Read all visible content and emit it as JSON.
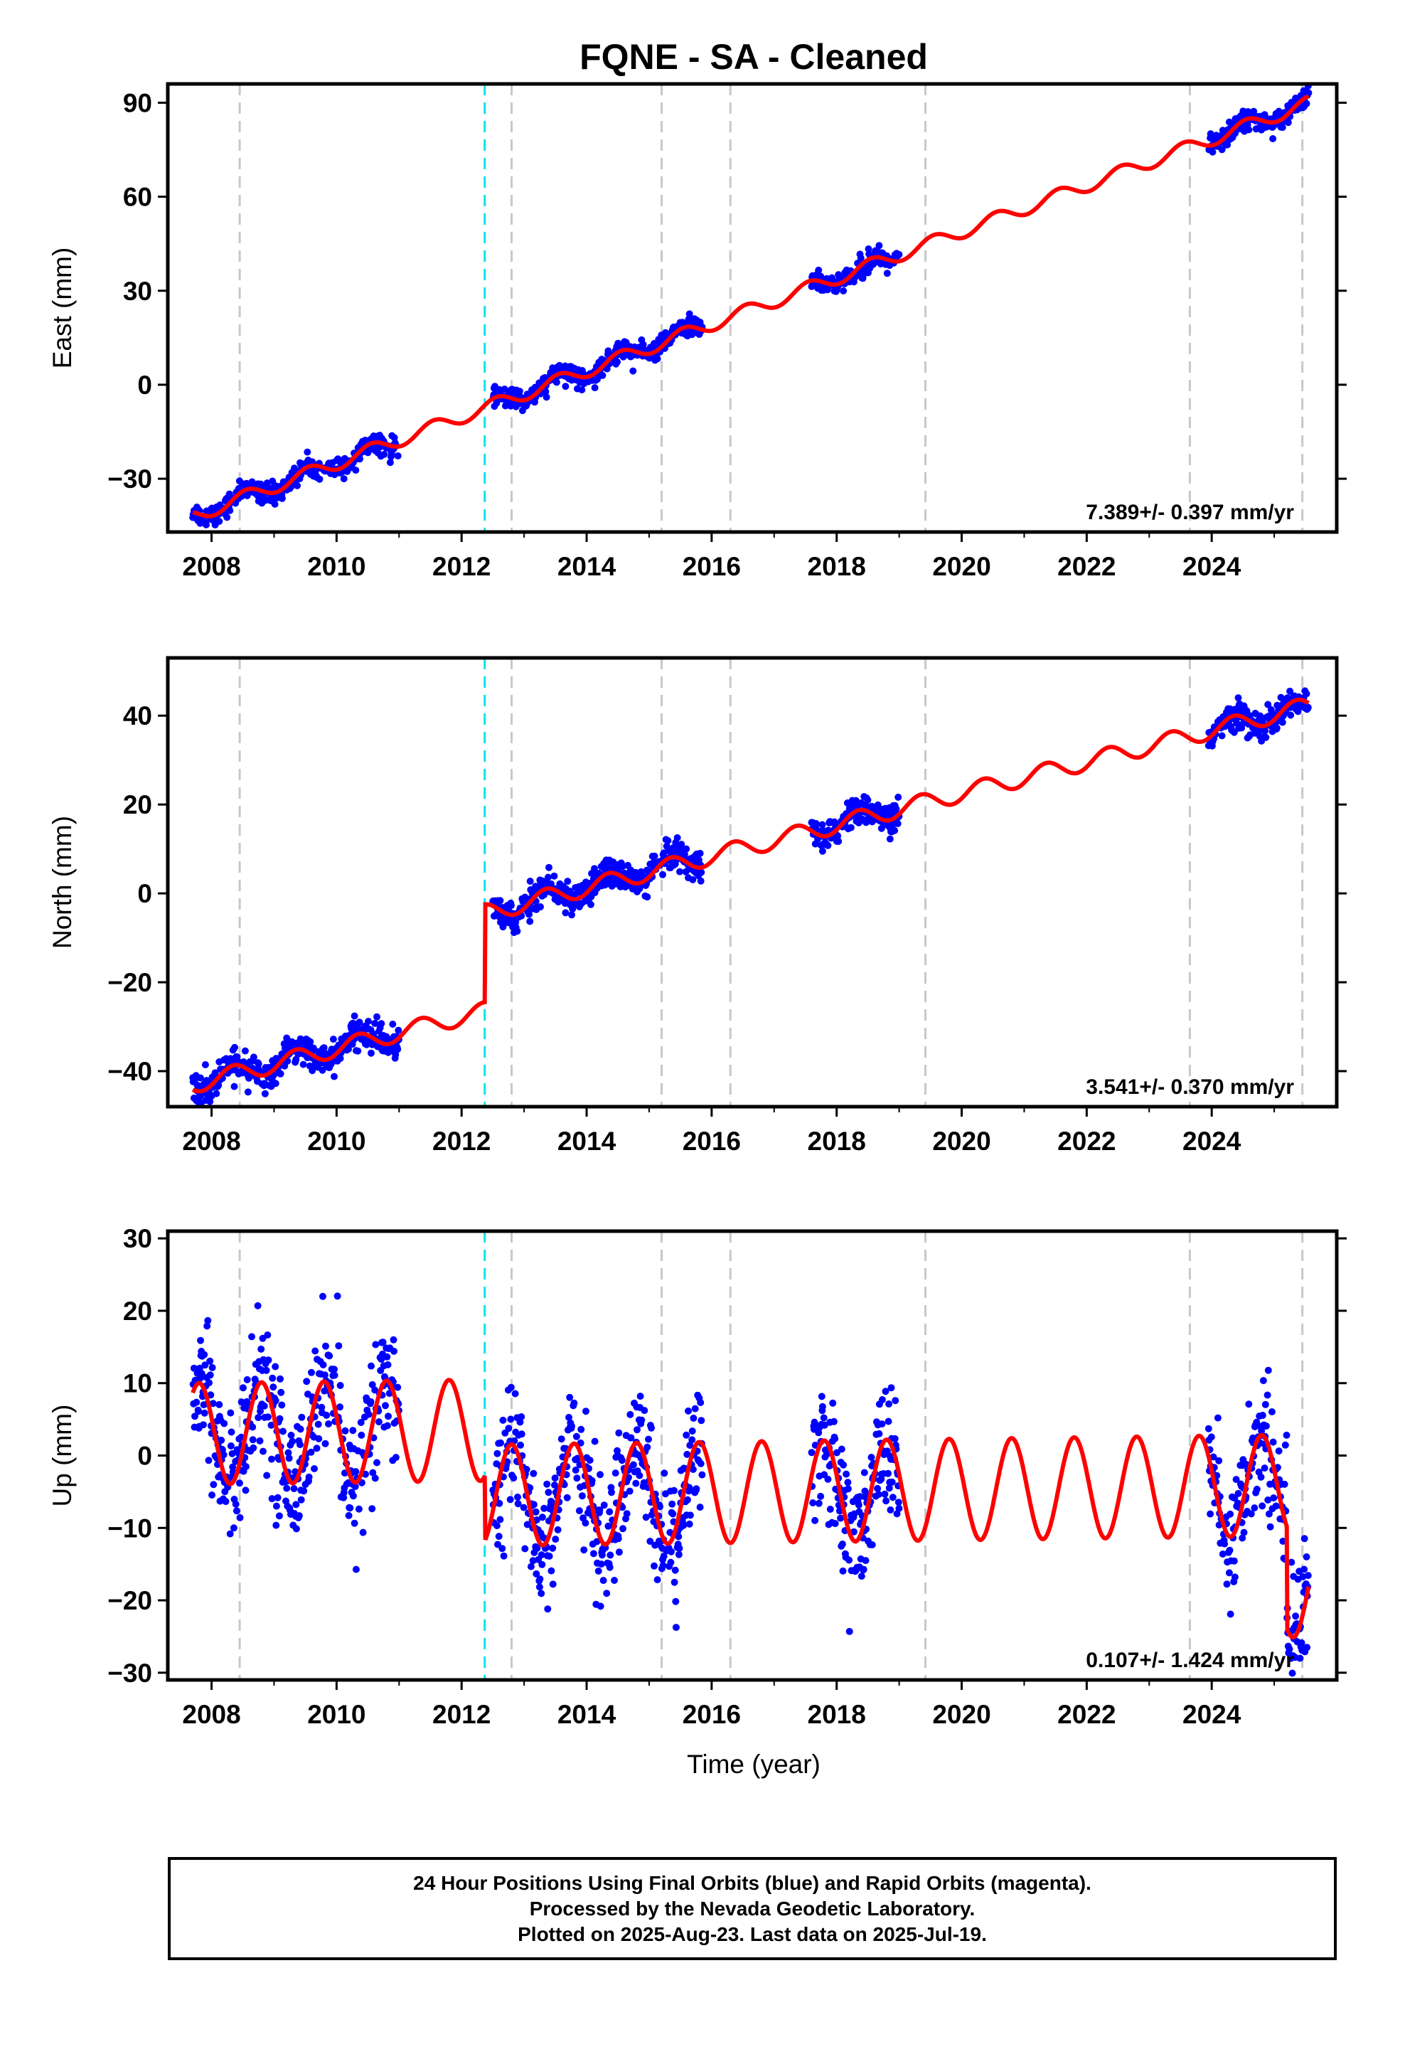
{
  "chart_data": {
    "type": "scatter",
    "title": "FQNE  - SA - Cleaned",
    "xlabel": "Time (year)",
    "xlim": [
      2007.3,
      2026.0
    ],
    "x_ticks": [
      2008,
      2010,
      2012,
      2014,
      2016,
      2018,
      2020,
      2022,
      2024
    ],
    "x_tick_labels": [
      "2008",
      "2010",
      "2012",
      "2014",
      "2016",
      "2018",
      "2020",
      "2022",
      "2024"
    ],
    "grid": false,
    "colors": {
      "observations": "#0000ff",
      "model": "#ff0000",
      "equipment_change": "#c8c8c8",
      "earthquake": "#00e5ee"
    },
    "equipment_changes": [
      2008.45,
      2012.8,
      2015.2,
      2016.3,
      2019.42,
      2023.65,
      2025.45
    ],
    "earthquakes": [
      2012.37
    ],
    "data_spans": [
      [
        2007.7,
        2011.0
      ],
      [
        2012.5,
        2015.85
      ],
      [
        2017.6,
        2019.0
      ],
      [
        2023.95,
        2025.55
      ]
    ],
    "panels": [
      {
        "name": "East",
        "ylabel": "East (mm)",
        "ylim": [
          -47,
          96
        ],
        "y_ticks": [
          -30,
          0,
          30,
          60,
          90
        ],
        "y_tick_labels": [
          "−30",
          "0",
          "30",
          "60",
          "90"
        ],
        "rate_label": "7.389+/- 0.397 mm/yr",
        "model": {
          "type": "offset_trend_seasonal",
          "rate_mm_per_yr": 7.389,
          "reference_value": -42,
          "reference_year": 2007.7,
          "seasonal_amplitude": 2.2,
          "seasonal_phase": 0.3,
          "steps": [
            {
              "year": 2012.37,
              "size": 0
            }
          ]
        },
        "scatter_sigma": 1.6
      },
      {
        "name": "North",
        "ylabel": "North (mm)",
        "ylim": [
          -48,
          53
        ],
        "y_ticks": [
          -40,
          -20,
          0,
          20,
          40
        ],
        "y_tick_labels": [
          "−40",
          "−20",
          "0",
          "20",
          "40"
        ],
        "rate_label": "3.541+/- 0.370 mm/yr",
        "model": {
          "type": "offset_trend_seasonal",
          "rate_mm_per_yr": 3.541,
          "reference_value": -43,
          "reference_year": 2007.7,
          "seasonal_amplitude": 2.0,
          "seasonal_phase": 0.1,
          "steps": [
            {
              "year": 2012.37,
              "size": 22
            }
          ]
        },
        "scatter_sigma": 1.6
      },
      {
        "name": "Up",
        "ylabel": "Up (mm)",
        "ylim": [
          -31,
          31
        ],
        "y_ticks": [
          -30,
          -20,
          -10,
          0,
          10,
          20,
          30
        ],
        "y_tick_labels": [
          "−30",
          "−20",
          "−10",
          "0",
          "10",
          "20",
          "30"
        ],
        "rate_label": "0.107+/- 1.424 mm/yr",
        "model": {
          "type": "offset_trend_seasonal",
          "rate_mm_per_yr": 0.107,
          "reference_value": 3,
          "reference_year": 2007.7,
          "seasonal_amplitude": 7.0,
          "seasonal_phase": 0.55,
          "steps": [
            {
              "year": 2012.37,
              "size": -9
            },
            {
              "year": 2025.2,
              "size": -14
            }
          ]
        },
        "scatter_sigma": 4.5
      }
    ]
  },
  "footer": {
    "line1": "24 Hour Positions Using Final Orbits (blue) and Rapid Orbits (magenta).",
    "line2": "Processed by the Nevada Geodetic Laboratory.",
    "line3": "Plotted on 2025-Aug-23. Last data on 2025-Jul-19."
  }
}
